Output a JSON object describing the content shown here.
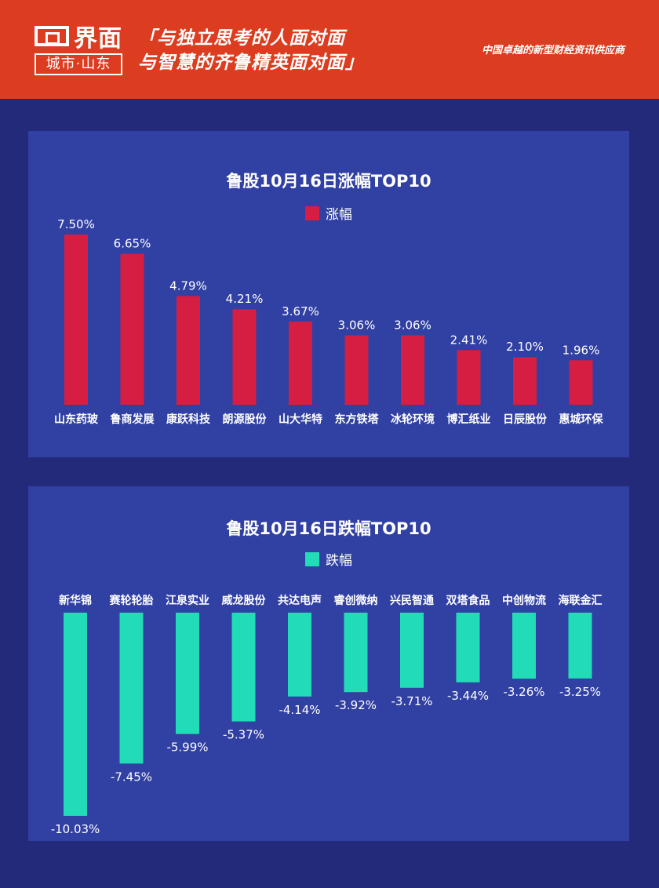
{
  "header": {
    "logo_text": "界面",
    "logo_sub": "城市·山东",
    "slogan_line1": "「与独立思考的人面对面",
    "slogan_line2": "与智慧的齐鲁精英面对面」",
    "tagline": "中国卓越的新型财经资讯供应商"
  },
  "colors": {
    "header_bg": "#dc3d20",
    "page_bg": "#232a7a",
    "panel_bg": "#3140a3",
    "gain_bar": "#d61e42",
    "loss_bar": "#22dcb8"
  },
  "chart_data": [
    {
      "type": "bar",
      "title": "鲁股10月16日涨幅TOP10",
      "series": [
        {
          "name": "涨幅",
          "values": [
            7.5,
            6.65,
            4.79,
            4.21,
            3.67,
            3.06,
            3.06,
            2.41,
            2.1,
            1.96
          ],
          "labels": [
            "7.50%",
            "6.65%",
            "4.79%",
            "4.21%",
            "3.67%",
            "3.06%",
            "3.06%",
            "2.41%",
            "2.10%",
            "1.96%"
          ]
        }
      ],
      "categories": [
        "山东药玻",
        "鲁商发展",
        "康跃科技",
        "朗源股份",
        "山大华特",
        "东方铁塔",
        "冰轮环境",
        "博汇纸业",
        "日辰股份",
        "惠城环保"
      ],
      "ylim": [
        0,
        7.5
      ],
      "legend": "top-center",
      "grid": false
    },
    {
      "type": "bar",
      "title": "鲁股10月16日跌幅TOP10",
      "series": [
        {
          "name": "跌幅",
          "values": [
            -10.03,
            -7.45,
            -5.99,
            -5.37,
            -4.14,
            -3.92,
            -3.71,
            -3.44,
            -3.26,
            -3.25
          ],
          "labels": [
            "-10.03%",
            "-7.45%",
            "-5.99%",
            "-5.37%",
            "-4.14%",
            "-3.92%",
            "-3.71%",
            "-3.44%",
            "-3.26%",
            "-3.25%"
          ]
        }
      ],
      "categories": [
        "新华锦",
        "赛轮轮胎",
        "江泉实业",
        "威龙股份",
        "共达电声",
        "睿创微纳",
        "兴民智通",
        "双塔食品",
        "中创物流",
        "海联金汇"
      ],
      "ylim": [
        -10.03,
        0
      ],
      "legend": "top-center",
      "grid": false
    }
  ]
}
